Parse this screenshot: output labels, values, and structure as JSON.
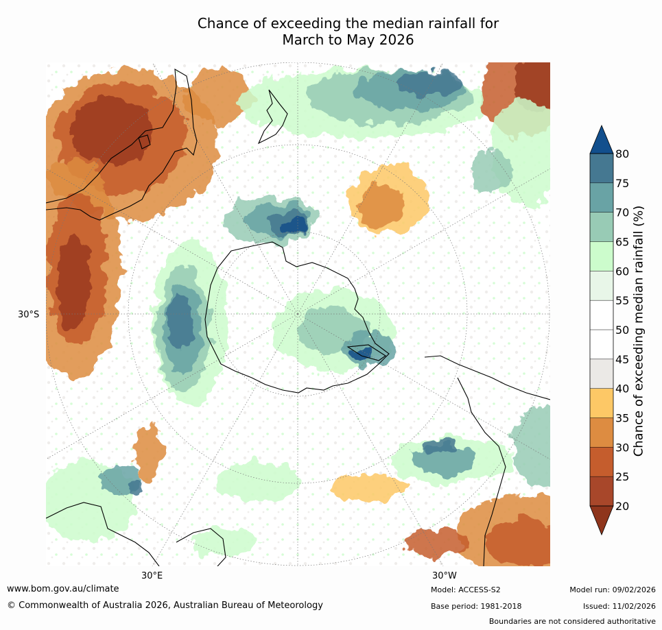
{
  "title_line1": "Chance of exceeding the median rainfall for",
  "title_line2": "March to May 2026",
  "axis": {
    "lat_label": "30°S",
    "lon_label_east": "30°E",
    "lon_label_west": "30°W"
  },
  "colorbar": {
    "title": "Chance of exceeding median rainfall (%)",
    "ticks": [
      "20",
      "25",
      "30",
      "35",
      "40",
      "45",
      "50",
      "55",
      "60",
      "65",
      "70",
      "75",
      "80"
    ],
    "colors": [
      "#9b3c1e",
      "#a8472a",
      "#c55d2d",
      "#dd8c41",
      "#fdc866",
      "#ebe9e6",
      "#ffffff",
      "#ffffff",
      "#e8f6e8",
      "#ccfccc",
      "#98cbb5",
      "#69a3a5",
      "#457891",
      "#164d88"
    ],
    "under_color": "#8f351c",
    "over_color": "#124f8d"
  },
  "footer": {
    "website": "www.bom.gov.au/climate",
    "copyright": "© Commonwealth of Australia 2026, Australian Bureau of Meteorology",
    "model": "Model: ACCESS-S2",
    "base_period": "Base period: 1981-2018",
    "model_run": "Model run: 09/02/2026",
    "issued": "Issued: 11/02/2026",
    "disclaimer": "Boundaries are not considered authoritative"
  },
  "map_palette": {
    "dry_dark": "#9b3c1e",
    "dry_mid": "#c55d2d",
    "dry_light": "#dd8c41",
    "dry_pale": "#fdc866",
    "neutral": "#ebe9e6",
    "wet_pale": "#ccfccc",
    "wet_light": "#98cbb5",
    "wet_mid": "#69a3a5",
    "wet_dark": "#457891",
    "wet_deep": "#164d88"
  }
}
